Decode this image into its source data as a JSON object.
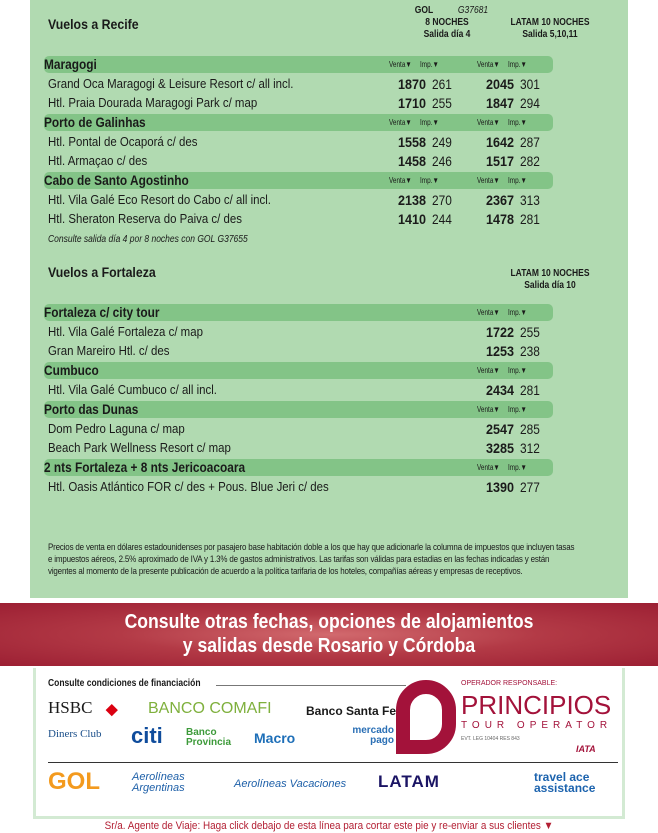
{
  "recife": {
    "title": "Vuelos a Recife",
    "gol_header": {
      "airline": "GOL",
      "flight": "G37681",
      "nights": "8 NOCHES",
      "departure": "Salida día 4"
    },
    "latam_header": {
      "airline": "LATAM 10 NOCHES",
      "departure": "Salida 5,10,11"
    },
    "sections": [
      {
        "name": "Maragogi",
        "hotels": [
          {
            "name": "Grand Oca Maragogi & Leisure Resort c/ all incl.",
            "gol_venta": "1870",
            "gol_imp": "261",
            "latam_venta": "2045",
            "latam_imp": "301"
          },
          {
            "name": "Htl. Praia Dourada Maragogi Park c/ map",
            "gol_venta": "1710",
            "gol_imp": "255",
            "latam_venta": "1847",
            "latam_imp": "294"
          }
        ]
      },
      {
        "name": "Porto de Galinhas",
        "hotels": [
          {
            "name": "Htl. Pontal de Ocaporá c/ des",
            "gol_venta": "1558",
            "gol_imp": "249",
            "latam_venta": "1642",
            "latam_imp": "287"
          },
          {
            "name": "Htl. Armaçao c/ des",
            "gol_venta": "1458",
            "gol_imp": "246",
            "latam_venta": "1517",
            "latam_imp": "282"
          }
        ]
      },
      {
        "name": "Cabo de Santo Agostinho",
        "hotels": [
          {
            "name": "Htl. Vila Galé Eco Resort do Cabo c/ all incl.",
            "gol_venta": "2138",
            "gol_imp": "270",
            "latam_venta": "2367",
            "latam_imp": "313"
          },
          {
            "name": "Htl. Sheraton Reserva do Paiva c/ des",
            "gol_venta": "1410",
            "gol_imp": "244",
            "latam_venta": "1478",
            "latam_imp": "281"
          }
        ]
      }
    ],
    "note": "Consulte salida día 4 por 8 noches con GOL G37655"
  },
  "fortaleza": {
    "title": "Vuelos a Fortaleza",
    "latam_header": {
      "airline": "LATAM 10 NOCHES",
      "departure": "Salida día 10"
    },
    "sections": [
      {
        "name": "Fortaleza c/ city tour",
        "hotels": [
          {
            "name": "Htl. Vila Galé Fortaleza c/ map",
            "latam_venta": "1722",
            "latam_imp": "255"
          },
          {
            "name": "Gran Mareiro Htl. c/ des",
            "latam_venta": "1253",
            "latam_imp": "238"
          }
        ]
      },
      {
        "name": "Cumbuco",
        "hotels": [
          {
            "name": "Htl. Vila Galé Cumbuco c/ all incl.",
            "latam_venta": "2434",
            "latam_imp": "281"
          }
        ]
      },
      {
        "name": "Porto das Dunas",
        "hotels": [
          {
            "name": "Dom Pedro Laguna c/ map",
            "latam_venta": "2547",
            "latam_imp": "285"
          },
          {
            "name": "Beach Park Wellness Resort c/ map",
            "latam_venta": "3285",
            "latam_imp": "312"
          }
        ]
      },
      {
        "name": "2 nts Fortaleza + 8 nts Jericoacoara",
        "hotels": [
          {
            "name": "Htl. Oasis Atlántico FOR c/ des + Pous. Blue Jeri c/ des",
            "latam_venta": "1390",
            "latam_imp": "277"
          }
        ]
      }
    ]
  },
  "labels": {
    "venta": "Venta▼",
    "imp": "Imp.▼"
  },
  "footnote": "Precios de venta en dólares estadounidenses por pasajero base habitación doble a los que hay que adicionarle la columna de impuestos que incluyen tasas e impuestos aéreos, 2.5% aproximado de IVA y 1.3% de gastos administrativos. Las tarifas son válidas para estadias en las fechas indicadas y están vigentes al momento de la presente publicación de acuerdo a la política tarifaria de los hoteles, compañías aéreas y empresas de receptivos.",
  "banner": {
    "line1": "Consulte otras fechas, opciones de alojamientos",
    "line2": "y salidas desde Rosario y Córdoba"
  },
  "financing": {
    "title": "Consulte condiciones de financiación",
    "banks": [
      "HSBC",
      "BANCO COMAFI",
      "Banco Santa Fe",
      "Diners Club",
      "citi",
      "Banco Provincia",
      "Macro",
      "mercado pago"
    ]
  },
  "operator": {
    "label": "OPERADOR RESPONSABLE:",
    "name": "PRINCIPIOS",
    "sub": "TOUR OPERATOR",
    "legajo": "EVT. LEG 10404 RES 843",
    "iata": "IATA"
  },
  "airlines": [
    "GOL",
    "Aerolíneas Argentinas",
    "Aerolíneas Vacaciones",
    "LATAM",
    "travel ace assistance"
  ],
  "cut_notice": "Sr/a. Agente de Viaje: Haga click debajo de esta línea para cortar este pie y re-enviar a sus clientes ▼",
  "colors": {
    "panel": "#b1dab1",
    "section_bar": "#83c487",
    "banner": "#a52638",
    "operator": "#a3123a"
  }
}
